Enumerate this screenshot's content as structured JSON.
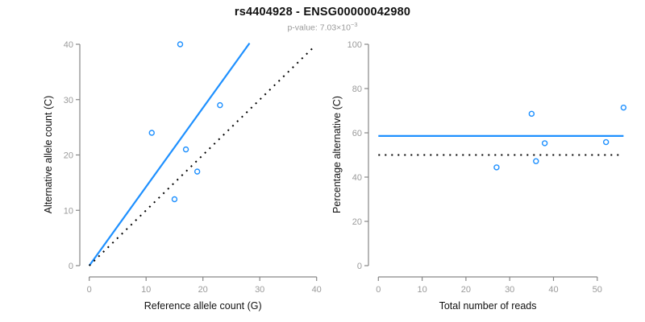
{
  "header": {
    "title": "rs4404928 - ENSG00000042980",
    "pvalue_prefix": "p-value: 7.03×10",
    "pvalue_exponent": "−3"
  },
  "colors": {
    "accent_blue": "#1E90FF",
    "dotted_black": "#000000",
    "axis_gray": "#878787",
    "tick_label_gray": "#9a9a9a",
    "axis_title_color": "#111111"
  },
  "chart_data": [
    {
      "type": "scatter",
      "name": "allele-count-scatter",
      "xlabel": "Reference allele count (G)",
      "ylabel": "Alternative allele count (C)",
      "xlim": [
        0,
        40
      ],
      "ylim": [
        0,
        40
      ],
      "xticks": [
        0,
        10,
        20,
        30,
        40
      ],
      "yticks": [
        0,
        10,
        20,
        30,
        40
      ],
      "grid": false,
      "legend": "none",
      "points": [
        [
          16,
          40
        ],
        [
          23,
          29
        ],
        [
          11,
          24
        ],
        [
          17,
          21
        ],
        [
          19,
          17
        ],
        [
          15,
          12
        ]
      ],
      "lines": [
        {
          "name": "fitted-proportion-line",
          "style": "solid",
          "color": "#1E90FF",
          "slope": 1.42,
          "from": [
            0,
            0
          ],
          "to": [
            28.2,
            40.2
          ]
        },
        {
          "name": "identity-line",
          "style": "dotted",
          "color": "#000000",
          "slope": 1.0,
          "from": [
            0,
            0
          ],
          "to": [
            39.8,
            39.8
          ]
        }
      ]
    },
    {
      "type": "scatter",
      "name": "percentage-scatter",
      "xlabel": "Total number of reads",
      "ylabel": "Percentage alternative (C)",
      "xlim": [
        0,
        56
      ],
      "ylim": [
        0,
        100
      ],
      "xticks": [
        0,
        10,
        20,
        30,
        40,
        50
      ],
      "yticks": [
        0,
        20,
        40,
        60,
        80,
        100
      ],
      "grid": false,
      "legend": "none",
      "points": [
        [
          56,
          71.4
        ],
        [
          52,
          55.8
        ],
        [
          38,
          55.3
        ],
        [
          35,
          68.6
        ],
        [
          36,
          47.2
        ],
        [
          27,
          44.4
        ]
      ],
      "lines": [
        {
          "name": "mean-percentage-line",
          "style": "solid",
          "color": "#1E90FF",
          "value": 58.6,
          "from": [
            0,
            58.6
          ],
          "to": [
            56,
            58.6
          ]
        },
        {
          "name": "null-50-percent-line",
          "style": "dotted",
          "color": "#000000",
          "value": 50,
          "from": [
            0,
            50
          ],
          "to": [
            55,
            50
          ]
        }
      ]
    }
  ]
}
